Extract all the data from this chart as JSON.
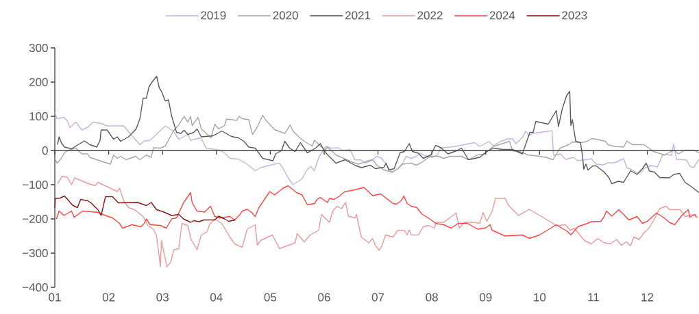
{
  "chart_data": {
    "type": "line",
    "legend": "top",
    "xlim": [
      1,
      12.96
    ],
    "ylim": [
      -400,
      300
    ],
    "xticks": [
      {
        "value": 1,
        "label": "01"
      },
      {
        "value": 2,
        "label": "02"
      },
      {
        "value": 3,
        "label": "03"
      },
      {
        "value": 4,
        "label": "04"
      },
      {
        "value": 5,
        "label": "05"
      },
      {
        "value": 6,
        "label": "06"
      },
      {
        "value": 7,
        "label": "07"
      },
      {
        "value": 8,
        "label": "08"
      },
      {
        "value": 9,
        "label": "09"
      },
      {
        "value": 10,
        "label": "10"
      },
      {
        "value": 11,
        "label": "11"
      },
      {
        "value": 12,
        "label": "12"
      }
    ],
    "yticks": [
      {
        "value": -400,
        "label": "−400"
      },
      {
        "value": -300,
        "label": "−300"
      },
      {
        "value": -200,
        "label": "−200"
      },
      {
        "value": -100,
        "label": "−100"
      },
      0,
      100,
      200,
      300
    ],
    "series": [
      {
        "name": "2019",
        "color": "#c9b3de",
        "x": [
          1.0,
          1.04,
          1.17,
          1.23,
          1.28,
          1.39,
          1.5,
          1.61,
          1.71,
          1.86,
          1.97,
          2.28,
          2.45,
          2.58,
          2.66,
          2.77,
          3.05,
          3.2,
          3.3,
          3.47,
          3.52,
          3.71,
          3.81,
          4.06,
          4.15,
          4.25,
          4.41,
          4.57,
          4.72,
          4.82,
          5.08,
          5.17,
          5.24,
          5.33,
          5.42,
          5.59,
          5.68,
          5.75,
          5.82,
          5.9,
          6.03,
          6.13,
          6.26,
          6.35,
          6.48,
          6.57,
          6.69,
          6.77,
          6.9,
          6.98,
          7.07,
          7.15,
          7.26,
          7.37,
          7.46,
          7.52,
          7.62,
          7.71,
          7.79,
          7.87,
          8.0,
          8.1,
          8.17,
          8.34,
          8.47,
          8.79,
          8.89,
          9.06,
          9.14,
          9.27,
          9.4,
          9.5,
          9.56,
          9.69,
          9.74,
          9.81,
          9.87,
          10.23,
          10.26,
          10.39,
          10.48,
          10.63,
          10.71,
          10.89,
          10.96,
          11.05,
          11.18,
          11.27,
          11.39,
          11.56,
          11.62,
          11.71,
          11.81,
          11.9,
          11.94,
          12.07,
          12.19,
          12.28,
          12.36,
          12.45,
          12.49,
          12.54,
          12.61,
          12.73,
          12.79,
          12.86,
          12.96
        ],
        "values": [
          112,
          93,
          97,
          87,
          67,
          83,
          60,
          68,
          83,
          79,
          72,
          72,
          40,
          17,
          28,
          30,
          72,
          57,
          33,
          47,
          30,
          37,
          7,
          1,
          -7,
          -23,
          -25,
          -40,
          -59,
          -50,
          -40,
          -37,
          -53,
          -80,
          -100,
          -83,
          -57,
          -47,
          -59,
          -20,
          12,
          7,
          8,
          0,
          3,
          -27,
          -28,
          -37,
          -27,
          -17,
          -23,
          -40,
          -65,
          -53,
          -37,
          -17,
          -23,
          -17,
          -7,
          -15,
          -20,
          -13,
          8,
          10,
          13,
          23,
          12,
          26,
          14,
          26,
          34,
          34,
          20,
          40,
          56,
          44,
          50,
          58,
          -14,
          -10,
          -26,
          -20,
          -30,
          -26,
          -24,
          -40,
          -42,
          -36,
          -36,
          -24,
          -50,
          -56,
          -66,
          -62,
          -52,
          -44,
          -48,
          -14,
          -12,
          -14,
          20,
          -26,
          -26,
          -28,
          -46,
          -50,
          -26
        ]
      },
      {
        "name": "2020",
        "color": "#a6a6a6",
        "x": [
          1.0,
          1.04,
          1.1,
          1.18,
          1.24,
          1.39,
          1.5,
          1.61,
          1.65,
          2.03,
          2.09,
          2.16,
          2.22,
          2.32,
          2.5,
          2.58,
          2.7,
          2.79,
          2.83,
          2.96,
          3.05,
          3.2,
          3.3,
          3.4,
          3.47,
          3.52,
          3.55,
          3.66,
          3.72,
          3.9,
          3.97,
          4.04,
          4.15,
          4.19,
          4.38,
          4.42,
          4.48,
          4.6,
          4.67,
          4.74,
          4.86,
          4.91,
          5.08,
          5.27,
          5.37,
          5.42,
          5.55,
          5.63,
          5.78,
          5.82,
          5.94,
          6.01,
          6.06,
          6.22,
          6.51,
          6.64,
          6.82,
          6.9,
          6.98,
          7.11,
          7.26,
          7.37,
          7.46,
          7.62,
          7.71,
          7.79,
          7.97,
          8.13,
          8.22,
          8.34,
          8.55,
          8.68,
          8.85,
          8.98,
          9.14,
          9.31,
          9.44,
          9.5,
          9.63,
          9.78,
          10.0,
          10.12,
          10.25,
          10.38,
          10.54,
          10.61,
          10.78,
          10.89,
          10.96,
          11.05,
          11.22,
          11.27,
          11.39,
          11.56,
          11.62,
          11.72,
          11.94,
          12.03,
          12.11,
          12.32,
          12.49,
          12.58,
          12.7,
          12.87,
          12.96
        ],
        "values": [
          -23,
          -37,
          -27,
          -7,
          0,
          7,
          -10,
          -10,
          -20,
          -40,
          -13,
          -23,
          -17,
          -27,
          -17,
          -27,
          -13,
          -20,
          8,
          7,
          13,
          57,
          75,
          100,
          83,
          100,
          73,
          97,
          63,
          37,
          77,
          63,
          73,
          92,
          88,
          100,
          93,
          90,
          47,
          63,
          103,
          90,
          61,
          50,
          75,
          57,
          37,
          27,
          13,
          30,
          12,
          0,
          10,
          -13,
          -33,
          -40,
          -30,
          -27,
          -43,
          -57,
          -63,
          -53,
          -40,
          -37,
          -43,
          -37,
          -17,
          -17,
          -23,
          -17,
          -17,
          -27,
          -13,
          -10,
          12,
          20,
          27,
          -1,
          -3,
          -13,
          -17,
          -20,
          -27,
          7,
          17,
          25,
          23,
          27,
          35,
          33,
          27,
          17,
          12,
          10,
          28,
          17,
          17,
          7,
          -3,
          -13,
          1,
          -10,
          1,
          1,
          -7
        ]
      },
      {
        "name": "2021",
        "color": "#595959",
        "x": [
          1.05,
          1.08,
          1.12,
          1.18,
          1.31,
          1.39,
          1.55,
          1.65,
          1.78,
          1.84,
          1.86,
          1.97,
          2.09,
          2.16,
          2.22,
          2.37,
          2.51,
          2.58,
          2.64,
          2.7,
          2.75,
          2.82,
          2.89,
          2.94,
          2.98,
          3.05,
          3.11,
          3.17,
          3.26,
          3.34,
          3.4,
          3.47,
          3.58,
          3.64,
          3.72,
          3.94,
          4.1,
          4.28,
          4.41,
          4.51,
          4.6,
          4.72,
          4.86,
          5.05,
          5.1,
          5.21,
          5.27,
          5.36,
          5.46,
          5.56,
          5.69,
          5.84,
          5.93,
          6.03,
          6.22,
          6.39,
          6.57,
          6.69,
          6.86,
          6.95,
          7.11,
          7.15,
          7.2,
          7.3,
          7.41,
          7.49,
          7.58,
          7.64,
          7.75,
          7.84,
          7.98,
          8.07,
          8.17,
          8.3,
          8.47,
          8.55,
          8.68,
          8.89,
          9.02,
          9.14,
          9.31,
          9.5,
          9.68,
          9.82,
          9.88,
          9.93,
          10.16,
          10.31,
          10.35,
          10.42,
          10.5,
          10.56,
          10.58,
          10.61,
          10.67,
          10.76,
          10.8,
          10.82,
          10.86,
          10.9,
          10.99,
          11.05,
          11.2,
          11.29,
          11.34,
          11.46,
          11.56,
          11.69,
          11.81,
          11.91,
          11.98,
          12.04,
          12.13,
          12.23,
          12.41,
          12.49,
          12.6,
          12.7,
          12.83,
          12.96
        ],
        "values": [
          17,
          40,
          23,
          10,
          5,
          13,
          28,
          17,
          10,
          30,
          60,
          60,
          33,
          40,
          27,
          40,
          63,
          93,
          153,
          153,
          187,
          203,
          217,
          183,
          173,
          145,
          148,
          100,
          53,
          50,
          59,
          47,
          53,
          63,
          40,
          43,
          57,
          41,
          37,
          27,
          10,
          7,
          -23,
          -30,
          -10,
          0,
          27,
          7,
          -3,
          23,
          -7,
          7,
          20,
          -7,
          -37,
          -27,
          -43,
          -50,
          -43,
          -53,
          -49,
          -37,
          -57,
          -53,
          -7,
          -3,
          20,
          -3,
          -8,
          -23,
          -13,
          15,
          8,
          -10,
          0,
          7,
          -27,
          -20,
          -3,
          7,
          3,
          3,
          -10,
          53,
          53,
          85,
          77,
          117,
          70,
          121,
          160,
          173,
          73,
          90,
          27,
          23,
          -20,
          -55,
          -40,
          -57,
          -45,
          -45,
          -63,
          -80,
          -97,
          -90,
          -93,
          -59,
          -70,
          -53,
          -37,
          -60,
          -63,
          -79,
          -80,
          -70,
          -67,
          -93,
          -107,
          -123
        ]
      },
      {
        "name": "2022",
        "color": "#ec9a9a",
        "x": [
          1.05,
          1.14,
          1.24,
          1.31,
          1.37,
          1.52,
          1.62,
          1.75,
          1.8,
          2.16,
          2.2,
          2.28,
          2.37,
          2.48,
          2.64,
          2.73,
          2.83,
          2.89,
          2.96,
          2.98,
          3.08,
          3.15,
          3.21,
          3.3,
          3.36,
          3.47,
          3.53,
          3.64,
          3.72,
          3.83,
          3.87,
          3.97,
          4.1,
          4.25,
          4.34,
          4.48,
          4.57,
          4.72,
          4.76,
          4.82,
          5.04,
          5.17,
          5.46,
          5.5,
          5.63,
          5.74,
          5.9,
          5.95,
          6.1,
          6.16,
          6.24,
          6.32,
          6.4,
          6.45,
          6.57,
          6.6,
          6.69,
          6.83,
          6.9,
          6.95,
          7.02,
          7.07,
          7.14,
          7.28,
          7.37,
          7.49,
          7.54,
          7.58,
          7.62,
          7.75,
          7.84,
          7.94,
          8.04,
          8.09,
          8.22,
          8.45,
          8.51,
          8.6,
          8.79,
          8.89,
          8.95,
          9.02,
          9.12,
          9.18,
          9.36,
          9.42,
          9.61,
          9.81,
          10.25,
          10.29,
          10.48,
          10.57,
          10.65,
          10.71,
          10.83,
          10.96,
          11.08,
          11.2,
          11.31,
          11.43,
          11.52,
          11.61,
          11.69,
          11.75,
          11.85,
          11.94,
          12.03,
          12.11,
          12.23,
          12.35,
          12.41,
          12.61,
          12.7,
          12.87,
          12.94
        ],
        "values": [
          -97,
          -75,
          -79,
          -100,
          -80,
          -90,
          -97,
          -103,
          -93,
          -120,
          -110,
          -147,
          -167,
          -173,
          -193,
          -220,
          -230,
          -250,
          -340,
          -263,
          -340,
          -327,
          -290,
          -287,
          -213,
          -220,
          -260,
          -290,
          -247,
          -237,
          -217,
          -200,
          -213,
          -253,
          -273,
          -283,
          -230,
          -217,
          -277,
          -263,
          -247,
          -287,
          -270,
          -243,
          -267,
          -247,
          -233,
          -187,
          -210,
          -177,
          -163,
          -170,
          -152,
          -192,
          -197,
          -187,
          -253,
          -270,
          -257,
          -277,
          -292,
          -280,
          -247,
          -253,
          -233,
          -233,
          -247,
          -232,
          -247,
          -247,
          -223,
          -219,
          -227,
          -210,
          -210,
          -183,
          -227,
          -210,
          -210,
          -213,
          -181,
          -207,
          -177,
          -140,
          -140,
          -160,
          -190,
          -172,
          -213,
          -220,
          -217,
          -233,
          -227,
          -240,
          -263,
          -273,
          -257,
          -270,
          -273,
          -260,
          -277,
          -267,
          -279,
          -253,
          -260,
          -240,
          -227,
          -207,
          -170,
          -163,
          -173,
          -173,
          -193,
          -187,
          -197
        ]
      },
      {
        "name": "2024",
        "color": "#ff4242",
        "x": [
          1.03,
          1.08,
          1.17,
          1.31,
          1.36,
          1.52,
          1.81,
          1.94,
          2.07,
          2.2,
          2.26,
          2.43,
          2.6,
          2.66,
          2.7,
          2.77,
          2.96,
          3.07,
          3.17,
          3.26,
          3.39,
          3.52,
          3.55,
          3.64,
          3.78,
          3.89,
          3.97,
          4.06,
          4.25,
          4.34,
          4.44,
          4.48,
          4.57,
          4.65,
          4.72,
          4.79,
          4.99,
          5.08,
          5.24,
          5.33,
          5.49,
          5.59,
          5.69,
          5.82,
          5.87,
          5.93,
          6.06,
          6.1,
          6.18,
          6.29,
          6.32,
          6.39,
          6.51,
          6.74,
          6.9,
          7.05,
          7.28,
          7.34,
          7.43,
          7.48,
          7.54,
          7.62,
          7.72,
          7.81,
          7.97,
          8.07,
          8.22,
          8.36,
          8.49,
          8.66,
          8.85,
          8.99,
          9.08,
          9.12,
          9.36,
          9.68,
          9.81,
          10.0,
          10.25,
          10.31,
          10.52,
          10.58,
          10.71,
          10.89,
          10.96,
          11.14,
          11.2,
          11.24,
          11.34,
          11.47,
          11.66,
          11.81,
          11.91,
          12.0,
          12.17,
          12.28,
          12.41,
          12.51,
          12.64,
          12.76,
          12.79,
          12.89,
          12.91
        ],
        "values": [
          -200,
          -177,
          -190,
          -177,
          -195,
          -177,
          -181,
          -190,
          -197,
          -213,
          -227,
          -217,
          -223,
          -213,
          -200,
          -217,
          -219,
          -227,
          -200,
          -197,
          -153,
          -123,
          -153,
          -177,
          -180,
          -163,
          -193,
          -197,
          -193,
          -203,
          -187,
          -177,
          -172,
          -180,
          -193,
          -167,
          -120,
          -130,
          -110,
          -103,
          -123,
          -130,
          -159,
          -155,
          -143,
          -137,
          -152,
          -140,
          -143,
          -133,
          -128,
          -120,
          -117,
          -108,
          -132,
          -127,
          -155,
          -157,
          -147,
          -133,
          -155,
          -163,
          -167,
          -185,
          -201,
          -213,
          -217,
          -227,
          -213,
          -213,
          -230,
          -227,
          -217,
          -233,
          -250,
          -247,
          -257,
          -247,
          -223,
          -217,
          -237,
          -247,
          -223,
          -213,
          -208,
          -207,
          -193,
          -177,
          -192,
          -173,
          -203,
          -193,
          -213,
          -207,
          -183,
          -193,
          -210,
          -217,
          -190,
          -173,
          -195,
          -187,
          -195
        ]
      },
      {
        "name": "2023",
        "color": "#8b1414",
        "x": [
          1.0,
          1.01,
          1.1,
          1.18,
          1.33,
          1.42,
          1.48,
          1.61,
          1.67,
          1.8,
          1.86,
          1.94,
          2.07,
          2.18,
          2.54,
          2.7,
          2.79,
          2.89,
          3.01,
          3.17,
          3.3,
          3.39,
          3.52,
          3.58,
          3.68,
          3.77,
          3.97,
          4.04,
          4.15,
          4.23,
          4.35
        ],
        "values": [
          -167,
          -140,
          -139,
          -133,
          -160,
          -167,
          -143,
          -147,
          -153,
          -173,
          -190,
          -135,
          -135,
          -153,
          -152,
          -161,
          -152,
          -173,
          -179,
          -190,
          -187,
          -200,
          -210,
          -205,
          -208,
          -203,
          -203,
          -192,
          -200,
          -207,
          -203
        ]
      }
    ]
  }
}
